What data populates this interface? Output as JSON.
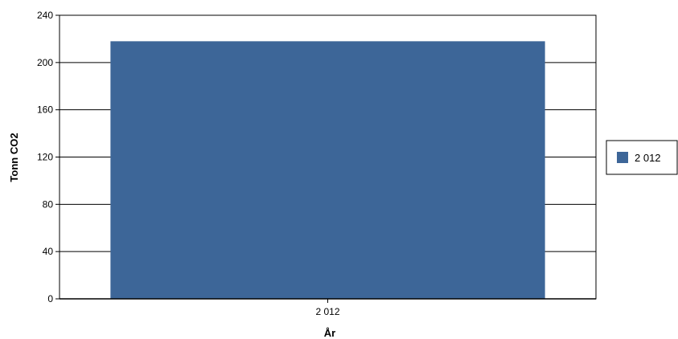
{
  "chart_data": {
    "type": "bar",
    "categories": [
      "2 012"
    ],
    "series": [
      {
        "name": "2 012",
        "values": [
          218
        ],
        "color": "#3d6698"
      }
    ],
    "title": "",
    "xlabel": "År",
    "ylabel": "Tonn CO2",
    "ylim": [
      0,
      240
    ],
    "yticks": [
      0,
      40,
      80,
      120,
      160,
      200,
      240
    ],
    "grid": true,
    "legend": "right"
  }
}
